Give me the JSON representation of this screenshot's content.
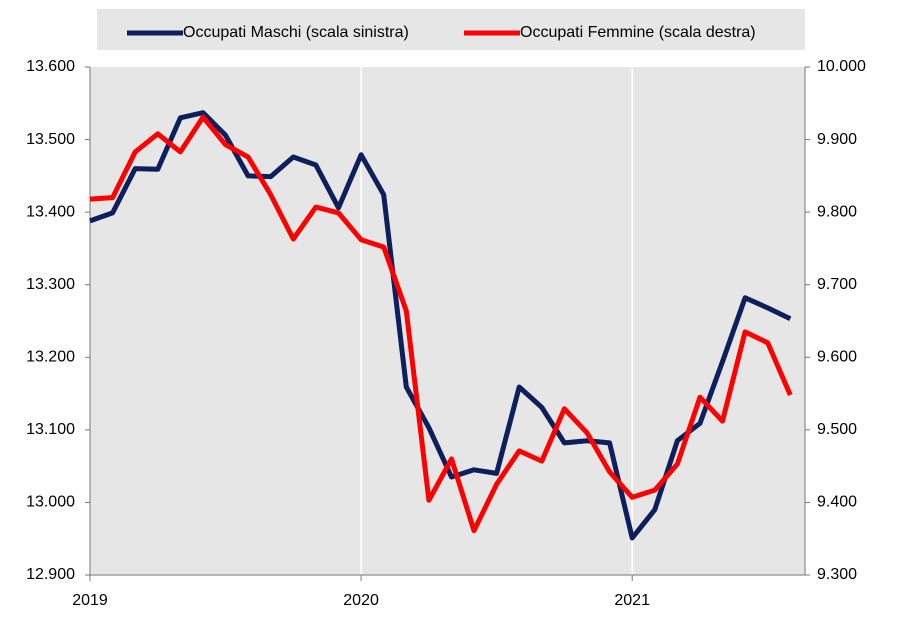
{
  "chart_data": {
    "type": "line",
    "categories": [
      "2019",
      null,
      null,
      null,
      null,
      null,
      null,
      null,
      null,
      null,
      null,
      null,
      "2020",
      null,
      null,
      null,
      null,
      null,
      null,
      null,
      null,
      null,
      null,
      null,
      "2021",
      null,
      null,
      null,
      null,
      null,
      null,
      null
    ],
    "series": [
      {
        "name": "Occupati Maschi (scala sinistra)",
        "color": "#0d1f5c",
        "values": [
          13388,
          13399,
          13460,
          13459,
          13530,
          13537,
          13506,
          13450,
          13449,
          13476,
          13465,
          13406,
          13479,
          13424,
          13159,
          13103,
          13035,
          13045,
          13040,
          13159,
          13131,
          13082,
          13085,
          13082,
          12951,
          12990,
          13085,
          13109,
          13194,
          13282,
          13268,
          13253
        ]
      },
      {
        "name": "Occupati Femmine (scala destra)",
        "color": "#ff0000",
        "axis": "y2",
        "values": [
          9818,
          9820,
          9883,
          9908,
          9883,
          9931,
          9893,
          9876,
          9824,
          9763,
          9807,
          9799,
          9762,
          9752,
          9664,
          9403,
          9460,
          9361,
          9425,
          9471,
          9457,
          9529,
          9496,
          9442,
          9407,
          9417,
          9453,
          9545,
          9512,
          9635,
          9620,
          9548
        ]
      }
    ],
    "ylim": [
      12900,
      13600
    ],
    "yticks": [
      {
        "value": 12900,
        "label": "12.900"
      },
      {
        "value": 13000,
        "label": "13.000"
      },
      {
        "value": 13100,
        "label": "13.100"
      },
      {
        "value": 13200,
        "label": "13.200"
      },
      {
        "value": 13300,
        "label": "13.300"
      },
      {
        "value": 13400,
        "label": "13.400"
      },
      {
        "value": 13500,
        "label": "13.500"
      },
      {
        "value": 13600,
        "label": "13.600"
      }
    ],
    "y2lim": [
      9300,
      10000
    ],
    "y2ticks": [
      {
        "value": 9300,
        "label": "9.300"
      },
      {
        "value": 9400,
        "label": "9.400"
      },
      {
        "value": 9500,
        "label": "9.500"
      },
      {
        "value": 9600,
        "label": "9.600"
      },
      {
        "value": 9700,
        "label": "9.700"
      },
      {
        "value": 9800,
        "label": "9.800"
      },
      {
        "value": 9900,
        "label": "9.900"
      },
      {
        "value": 10000,
        "label": "10.000"
      }
    ],
    "grid": "x",
    "legend": "top"
  }
}
